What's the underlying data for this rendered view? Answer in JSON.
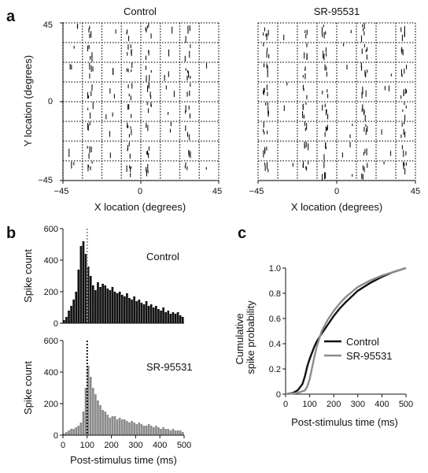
{
  "panels": {
    "a": "a",
    "b": "b",
    "c": "c"
  },
  "chart_data": [
    {
      "type": "raster",
      "title": "Control",
      "xlabel": "X location (degrees)",
      "ylabel": "Y location (degrees)",
      "xlim": [
        -45,
        45
      ],
      "ylim": [
        -45,
        45
      ],
      "xticks": [
        "−45",
        "0",
        "45"
      ],
      "yticks": [
        "45",
        "0",
        "−45"
      ],
      "grid": "8x8 dotted"
    },
    {
      "type": "raster",
      "title": "SR-95531",
      "xlabel": "X location (degrees)",
      "xlim": [
        -45,
        45
      ],
      "ylim": [
        -45,
        45
      ],
      "xticks": [
        "−45",
        "0",
        "45"
      ],
      "grid": "8x8 dotted"
    },
    {
      "type": "bar",
      "label": "Control",
      "ylabel": "Spike count",
      "ylim": [
        0,
        600
      ],
      "yticks": [
        "0",
        "200",
        "400",
        "600"
      ],
      "bin_ms": 10,
      "marker_ms": 100,
      "color": "#111111",
      "x": [
        5,
        15,
        25,
        35,
        45,
        55,
        65,
        75,
        85,
        95,
        105,
        115,
        125,
        135,
        145,
        155,
        165,
        175,
        185,
        195,
        205,
        215,
        225,
        235,
        245,
        255,
        265,
        275,
        285,
        295,
        305,
        315,
        325,
        335,
        345,
        355,
        365,
        375,
        385,
        395,
        405,
        415,
        425,
        435,
        445,
        455,
        465,
        475,
        485,
        495
      ],
      "values": [
        20,
        40,
        80,
        110,
        150,
        200,
        340,
        490,
        520,
        440,
        360,
        300,
        240,
        210,
        260,
        230,
        250,
        240,
        220,
        210,
        230,
        200,
        190,
        200,
        180,
        170,
        190,
        160,
        150,
        170,
        140,
        150,
        130,
        120,
        140,
        110,
        120,
        100,
        110,
        90,
        80,
        100,
        70,
        80,
        60,
        70,
        60,
        70,
        50,
        40
      ]
    },
    {
      "type": "bar",
      "label": "SR-95531",
      "ylabel": "Spike count",
      "xlabel": "Post-stimulus time (ms)",
      "ylim": [
        0,
        600
      ],
      "yticks": [
        "0",
        "200",
        "400",
        "600"
      ],
      "xticks": [
        "0",
        "100",
        "200",
        "300",
        "400",
        "500"
      ],
      "xlim": [
        0,
        500
      ],
      "bin_ms": 10,
      "marker_ms": 100,
      "color": "#8c8c8c",
      "x": [
        5,
        15,
        25,
        35,
        45,
        55,
        65,
        75,
        85,
        95,
        105,
        115,
        125,
        135,
        145,
        155,
        165,
        175,
        185,
        195,
        205,
        215,
        225,
        235,
        245,
        255,
        265,
        275,
        285,
        295,
        305,
        315,
        325,
        335,
        345,
        355,
        365,
        375,
        385,
        395,
        405,
        415,
        425,
        435,
        445,
        455,
        465,
        475,
        485,
        495
      ],
      "values": [
        10,
        20,
        30,
        40,
        40,
        50,
        60,
        80,
        150,
        300,
        440,
        370,
        300,
        260,
        220,
        190,
        160,
        150,
        130,
        110,
        120,
        120,
        100,
        110,
        100,
        100,
        90,
        80,
        90,
        80,
        70,
        80,
        70,
        60,
        60,
        70,
        60,
        50,
        60,
        50,
        40,
        50,
        40,
        40,
        30,
        40,
        30,
        30,
        30,
        20
      ]
    },
    {
      "type": "line",
      "ylabel": "Cumulative spike probability",
      "xlabel": "Post-stimulus time (ms)",
      "xlim": [
        0,
        500
      ],
      "ylim": [
        0,
        1
      ],
      "xticks": [
        "0",
        "100",
        "200",
        "300",
        "400",
        "500"
      ],
      "yticks": [
        "0",
        "0.2",
        "0.4",
        "0.6",
        "0.8",
        "1.0"
      ],
      "legend": "right",
      "series": [
        {
          "name": "Control",
          "color": "#111111",
          "x": [
            0,
            30,
            50,
            70,
            80,
            90,
            100,
            110,
            120,
            130,
            140,
            150,
            175,
            200,
            225,
            250,
            300,
            350,
            400,
            450,
            500
          ],
          "y": [
            0,
            0.01,
            0.03,
            0.08,
            0.14,
            0.22,
            0.28,
            0.33,
            0.38,
            0.42,
            0.45,
            0.48,
            0.55,
            0.62,
            0.68,
            0.73,
            0.82,
            0.88,
            0.93,
            0.97,
            1.0
          ]
        },
        {
          "name": "SR-95531",
          "color": "#8c8c8c",
          "x": [
            0,
            50,
            80,
            90,
            100,
            110,
            120,
            130,
            140,
            150,
            175,
            200,
            225,
            250,
            300,
            350,
            400,
            450,
            500
          ],
          "y": [
            0,
            0.01,
            0.03,
            0.06,
            0.12,
            0.21,
            0.3,
            0.38,
            0.44,
            0.5,
            0.59,
            0.66,
            0.72,
            0.77,
            0.85,
            0.9,
            0.94,
            0.97,
            1.0
          ]
        }
      ]
    }
  ]
}
